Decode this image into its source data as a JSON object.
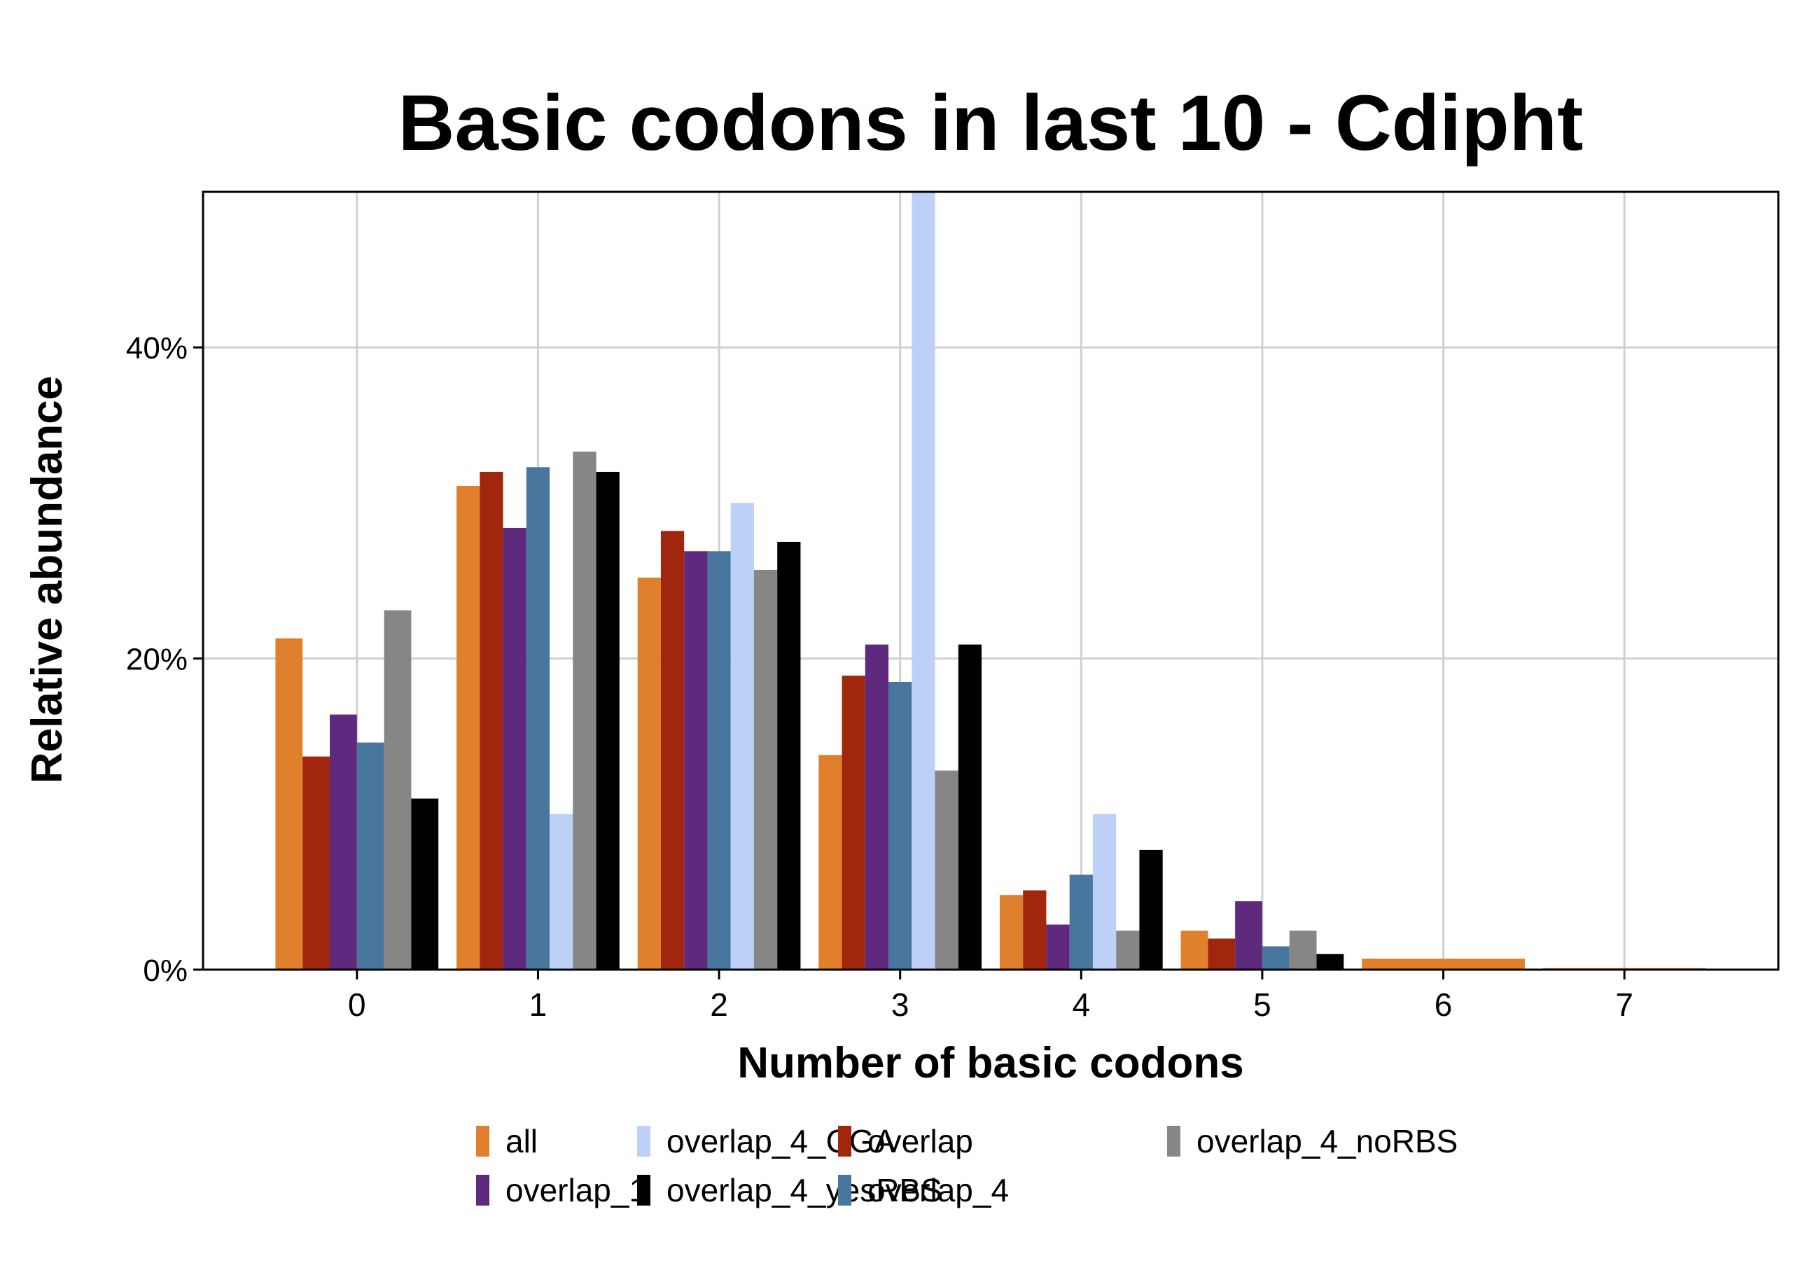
{
  "chart_data": {
    "type": "bar",
    "title": "Basic codons in last 10 - Cdipht",
    "xlabel": "Number of basic codons",
    "ylabel": "Relative abundance",
    "categories": [
      "0",
      "1",
      "2",
      "3",
      "4",
      "5",
      "6",
      "7"
    ],
    "yticks": [
      "0%",
      "20%",
      "40%"
    ],
    "ytick_values": [
      0,
      20,
      40
    ],
    "ylim": [
      0,
      50
    ],
    "xlim": [
      -0.85,
      7.85
    ],
    "grid": true,
    "legend_position": "bottom",
    "series": [
      {
        "name": "all",
        "color": "#E0802D",
        "values": [
          21.3,
          31.1,
          25.2,
          13.8,
          4.8,
          2.5,
          0.7,
          0.1
        ]
      },
      {
        "name": "overlap",
        "color": "#A0270D",
        "values": [
          13.7,
          32.0,
          28.2,
          18.9,
          5.1,
          2.0,
          0,
          0
        ]
      },
      {
        "name": "overlap_1",
        "color": "#5F2A7E",
        "values": [
          16.4,
          28.4,
          26.9,
          20.9,
          2.9,
          4.4,
          0,
          0
        ]
      },
      {
        "name": "overlap_4",
        "color": "#48769F",
        "values": [
          14.6,
          32.3,
          26.9,
          18.5,
          6.1,
          1.5,
          0,
          0
        ]
      },
      {
        "name": "overlap_4_CGA",
        "color": "#BDD0F8",
        "values": [
          0,
          10.0,
          30.0,
          50.0,
          10.0,
          0,
          0,
          0
        ]
      },
      {
        "name": "overlap_4_noRBS",
        "color": "#868686",
        "values": [
          23.1,
          33.3,
          25.7,
          12.8,
          2.5,
          2.5,
          0,
          0
        ]
      },
      {
        "name": "overlap_4_yesRBS",
        "color": "#000000",
        "values": [
          11.0,
          32.0,
          27.5,
          20.9,
          7.7,
          1.0,
          0,
          0
        ]
      }
    ],
    "legend_order": [
      0,
      2,
      4,
      6,
      1,
      3,
      5
    ]
  }
}
